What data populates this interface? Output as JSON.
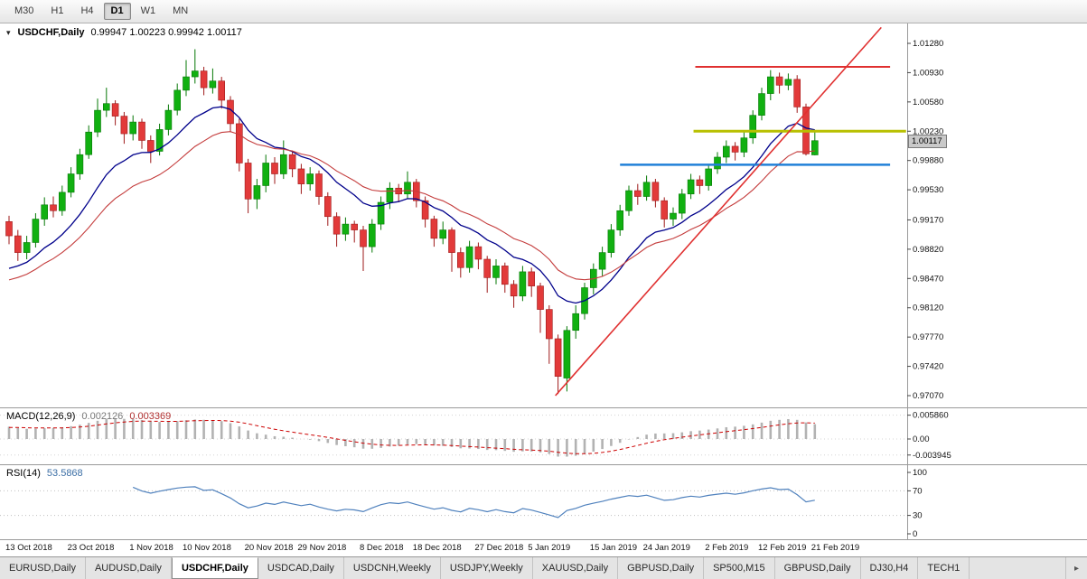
{
  "toolbar": {
    "timeframes": [
      {
        "label": "M30",
        "active": false
      },
      {
        "label": "H1",
        "active": false
      },
      {
        "label": "H4",
        "active": false
      },
      {
        "label": "D1",
        "active": true
      },
      {
        "label": "W1",
        "active": false
      },
      {
        "label": "MN",
        "active": false
      }
    ]
  },
  "chart": {
    "symbol_label": "USDCHF,Daily",
    "ohlc_label": "0.99947 1.00223 0.99942 1.00117",
    "current_price": "1.00117",
    "dropdown_icon": "▾"
  },
  "indicators": {
    "macd": {
      "label": "MACD(12,26,9)",
      "value_main": "0.002126",
      "value_signal": "0.003369",
      "axis": [
        "0.005860",
        "0.00",
        "-0.003945"
      ]
    },
    "rsi": {
      "label": "RSI(14)",
      "value": "53.5868",
      "axis": [
        "100",
        "70",
        "30",
        "0"
      ],
      "levels": [
        70,
        30
      ]
    }
  },
  "chart_data": {
    "type": "candlestick",
    "symbol": "USDCHF",
    "timeframe": "Daily",
    "y_axis": {
      "labels": [
        "1.01280",
        "1.00930",
        "1.00580",
        "1.00230",
        "0.99880",
        "0.99530",
        "0.99170",
        "0.98820",
        "0.98470",
        "0.98120",
        "0.97770",
        "0.97420",
        "0.97070"
      ]
    },
    "x_labels": [
      {
        "text": "13 Oct 2018",
        "bar": 0
      },
      {
        "text": "23 Oct 2018",
        "bar": 7
      },
      {
        "text": "1 Nov 2018",
        "bar": 14
      },
      {
        "text": "10 Nov 2018",
        "bar": 20
      },
      {
        "text": "20 Nov 2018",
        "bar": 27
      },
      {
        "text": "29 Nov 2018",
        "bar": 33
      },
      {
        "text": "8 Dec 2018",
        "bar": 40
      },
      {
        "text": "18 Dec 2018",
        "bar": 46
      },
      {
        "text": "27 Dec 2018",
        "bar": 53
      },
      {
        "text": "5 Jan 2019",
        "bar": 59
      },
      {
        "text": "15 Jan 2019",
        "bar": 66
      },
      {
        "text": "24 Jan 2019",
        "bar": 72
      },
      {
        "text": "2 Feb 2019",
        "bar": 79
      },
      {
        "text": "12 Feb 2019",
        "bar": 85
      },
      {
        "text": "21 Feb 2019",
        "bar": 91
      }
    ],
    "candles": [
      [
        0.9915,
        0.9922,
        0.9888,
        0.9898
      ],
      [
        0.9898,
        0.9905,
        0.9868,
        0.9878
      ],
      [
        0.9878,
        0.9898,
        0.987,
        0.989
      ],
      [
        0.989,
        0.9925,
        0.9884,
        0.9918
      ],
      [
        0.9918,
        0.9944,
        0.991,
        0.9935
      ],
      [
        0.9935,
        0.9945,
        0.992,
        0.9928
      ],
      [
        0.9928,
        0.9958,
        0.9922,
        0.995
      ],
      [
        0.995,
        0.998,
        0.9944,
        0.9972
      ],
      [
        0.9972,
        1.0002,
        0.9965,
        0.9995
      ],
      [
        0.9995,
        1.003,
        0.999,
        1.0022
      ],
      [
        1.0022,
        1.0062,
        1.0016,
        1.0048
      ],
      [
        1.0048,
        1.0075,
        1.004,
        1.0056
      ],
      [
        1.0056,
        1.006,
        1.003,
        1.0041
      ],
      [
        1.0041,
        1.0046,
        1.0008,
        1.002
      ],
      [
        1.002,
        1.0042,
        1.0012,
        1.0034
      ],
      [
        1.0034,
        1.0038,
        1.0002,
        1.0012
      ],
      [
        1.0012,
        1.0018,
        0.9985,
        0.9999
      ],
      [
        0.9999,
        1.0032,
        0.9994,
        1.0025
      ],
      [
        1.0025,
        1.0055,
        1.0018,
        1.0048
      ],
      [
        1.0048,
        1.008,
        1.0042,
        1.0072
      ],
      [
        1.0072,
        1.0108,
        1.0065,
        1.0088
      ],
      [
        1.0088,
        1.0121,
        1.008,
        1.0095
      ],
      [
        1.0095,
        1.01,
        1.0066,
        1.0075
      ],
      [
        1.0075,
        1.0098,
        1.0068,
        1.0083
      ],
      [
        1.0083,
        1.0088,
        1.005,
        1.006
      ],
      [
        1.006,
        1.0065,
        1.0022,
        1.0032
      ],
      [
        1.0032,
        1.0038,
        0.9975,
        0.9985
      ],
      [
        0.9985,
        0.999,
        0.9925,
        0.9942
      ],
      [
        0.9942,
        0.9966,
        0.993,
        0.9958
      ],
      [
        0.9958,
        0.9995,
        0.995,
        0.9985
      ],
      [
        0.9985,
        0.9992,
        0.996,
        0.9972
      ],
      [
        0.9972,
        1.0012,
        0.9966,
        0.9995
      ],
      [
        0.9995,
        1.0,
        0.9968,
        0.9978
      ],
      [
        0.9978,
        0.9984,
        0.9948,
        0.996
      ],
      [
        0.996,
        0.998,
        0.9952,
        0.9972
      ],
      [
        0.9972,
        0.9976,
        0.9935,
        0.9945
      ],
      [
        0.9945,
        0.995,
        0.991,
        0.9921
      ],
      [
        0.9921,
        0.9926,
        0.9885,
        0.99
      ],
      [
        0.99,
        0.992,
        0.9892,
        0.9912
      ],
      [
        0.9912,
        0.9916,
        0.989,
        0.9905
      ],
      [
        0.9905,
        0.991,
        0.9856,
        0.9885
      ],
      [
        0.9885,
        0.9918,
        0.9878,
        0.9912
      ],
      [
        0.9912,
        0.9945,
        0.9905,
        0.9938
      ],
      [
        0.9938,
        0.9962,
        0.993,
        0.9955
      ],
      [
        0.9955,
        0.996,
        0.9938,
        0.9948
      ],
      [
        0.9948,
        0.9975,
        0.9942,
        0.9962
      ],
      [
        0.9962,
        0.9966,
        0.9932,
        0.994
      ],
      [
        0.994,
        0.9945,
        0.9908,
        0.9918
      ],
      [
        0.9918,
        0.9922,
        0.9885,
        0.9895
      ],
      [
        0.9895,
        0.9915,
        0.9888,
        0.9905
      ],
      [
        0.9905,
        0.9908,
        0.9855,
        0.9878
      ],
      [
        0.9878,
        0.9884,
        0.9848,
        0.986
      ],
      [
        0.986,
        0.9892,
        0.9854,
        0.9885
      ],
      [
        0.9885,
        0.989,
        0.9858,
        0.987
      ],
      [
        0.987,
        0.9874,
        0.983,
        0.9848
      ],
      [
        0.9848,
        0.987,
        0.984,
        0.9862
      ],
      [
        0.9862,
        0.9866,
        0.983,
        0.984
      ],
      [
        0.984,
        0.9845,
        0.9812,
        0.9826
      ],
      [
        0.9826,
        0.9862,
        0.982,
        0.9855
      ],
      [
        0.9855,
        0.986,
        0.9825,
        0.9838
      ],
      [
        0.9838,
        0.9842,
        0.9782,
        0.981
      ],
      [
        0.981,
        0.9815,
        0.9745,
        0.9775
      ],
      [
        0.9775,
        0.978,
        0.9709,
        0.973
      ],
      [
        0.9728,
        0.979,
        0.9712,
        0.9785
      ],
      [
        0.9785,
        0.9815,
        0.9775,
        0.9805
      ],
      [
        0.9805,
        0.9842,
        0.9798,
        0.9836
      ],
      [
        0.9836,
        0.9865,
        0.9828,
        0.9858
      ],
      [
        0.9858,
        0.9885,
        0.985,
        0.9878
      ],
      [
        0.9878,
        0.9912,
        0.9872,
        0.9905
      ],
      [
        0.9905,
        0.9935,
        0.9898,
        0.9928
      ],
      [
        0.9928,
        0.9958,
        0.9922,
        0.9952
      ],
      [
        0.9952,
        0.996,
        0.9935,
        0.9945
      ],
      [
        0.9945,
        0.997,
        0.994,
        0.9962
      ],
      [
        0.9962,
        0.9966,
        0.9932,
        0.994
      ],
      [
        0.994,
        0.9944,
        0.9908,
        0.9918
      ],
      [
        0.9918,
        0.9932,
        0.991,
        0.9925
      ],
      [
        0.9925,
        0.9954,
        0.9918,
        0.9948
      ],
      [
        0.9948,
        0.9972,
        0.9942,
        0.9965
      ],
      [
        0.9965,
        0.997,
        0.9948,
        0.9958
      ],
      [
        0.9958,
        0.9984,
        0.9952,
        0.9978
      ],
      [
        0.9978,
        0.9998,
        0.9972,
        0.9992
      ],
      [
        0.9992,
        1.0012,
        0.9985,
        1.0005
      ],
      [
        1.0005,
        1.001,
        0.9988,
        0.9998
      ],
      [
        0.9998,
        1.0022,
        0.9992,
        1.0015
      ],
      [
        1.0015,
        1.0048,
        1.0008,
        1.0042
      ],
      [
        1.0042,
        1.0075,
        1.0036,
        1.0068
      ],
      [
        1.0068,
        1.0096,
        1.006,
        1.0088
      ],
      [
        1.0088,
        1.0093,
        1.0068,
        1.0078
      ],
      [
        1.0078,
        1.0092,
        1.0072,
        1.0085
      ],
      [
        1.0085,
        1.009,
        1.0045,
        1.0052
      ],
      [
        1.0052,
        1.0056,
        0.9994,
        0.9996
      ],
      [
        0.99947,
        1.00223,
        0.99942,
        1.00117
      ]
    ],
    "current_price": 1.00117,
    "overlays": {
      "hlines": [
        {
          "name": "resistance-line-red",
          "price": 1.01,
          "bar_start": 77.5,
          "bar_end": 99.5,
          "color": "#e03030",
          "width": 2
        },
        {
          "name": "level-line-yellow",
          "price": 1.0023,
          "bar_start": 77.3,
          "bar_end": 101.3,
          "color": "#b8c000",
          "width": 3
        },
        {
          "name": "support-line-blue",
          "price": 0.9983,
          "bar_start": 69.0,
          "bar_end": 99.5,
          "color": "#2080d8",
          "width": 2.5
        }
      ],
      "trendline": {
        "bar1": 61.7,
        "price1": 0.9707,
        "bar2": 98.5,
        "price2": 1.0147,
        "color": "#e03030",
        "width": 1.6
      },
      "moving_averages": [
        {
          "period": 12,
          "seed": 0.9852,
          "color": "#00008b",
          "width": 1.3
        },
        {
          "period": 21,
          "seed": 0.984,
          "color": "#c43c3c",
          "width": 1.1
        }
      ]
    },
    "colors": {
      "up": "#11b011",
      "up_edge": "#067806",
      "down": "#e23a3a",
      "down_edge": "#9e1a1a",
      "macd_hist": "#b2b2b2",
      "macd_signal": "#cc0000",
      "rsi": "#4f81bd"
    }
  },
  "tabbar": {
    "tabs": [
      {
        "label": "EURUSD,Daily"
      },
      {
        "label": "AUDUSD,Daily"
      },
      {
        "label": "USDCHF,Daily"
      },
      {
        "label": "USDCAD,Daily"
      },
      {
        "label": "USDCNH,Weekly"
      },
      {
        "label": "USDJPY,Weekly"
      },
      {
        "label": "XAUUSD,Daily"
      },
      {
        "label": "GBPUSD,Daily"
      },
      {
        "label": "SP500,M15"
      },
      {
        "label": "GBPUSD,Daily"
      },
      {
        "label": "DJ30,H4"
      },
      {
        "label": "TECH1"
      }
    ],
    "active_index": 2,
    "scroll_right": "▸"
  }
}
